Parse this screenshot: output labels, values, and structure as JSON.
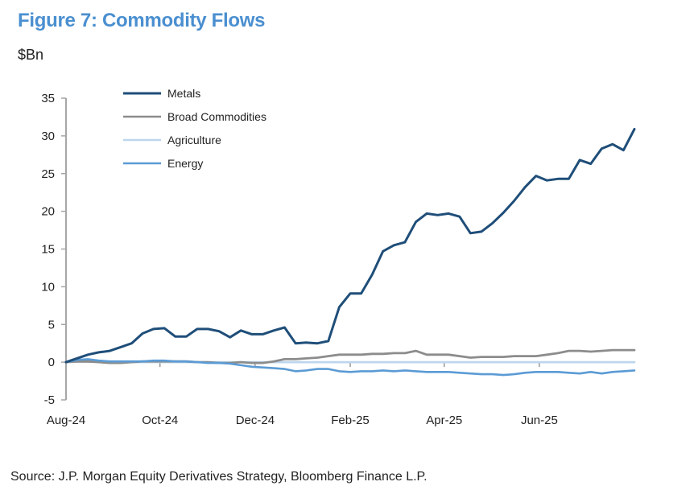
{
  "header": {
    "title": "Figure 7: Commodity Flows",
    "unit": "$Bn"
  },
  "footer": {
    "source": "Source: J.P. Morgan Equity Derivatives Strategy, Bloomberg Finance L.P."
  },
  "chart_data": {
    "type": "line",
    "title": "Figure 7: Commodity Flows",
    "ylabel": "$Bn",
    "xlabel": "",
    "ylim": [
      -5,
      35
    ],
    "yticks": [
      35,
      30,
      25,
      20,
      15,
      10,
      5,
      0,
      -5
    ],
    "xticks": [
      "Aug-24",
      "Oct-24",
      "Dec-24",
      "Feb-25",
      "Apr-25",
      "Jun-25"
    ],
    "xtick_week_index": [
      0,
      8.6,
      17.3,
      26,
      34.6,
      43.3
    ],
    "x_unit": "weekly observations from Aug-24",
    "grid": false,
    "legend_position": "top-left",
    "series": [
      {
        "name": "Metals",
        "color": "#1f4e79",
        "values": [
          0,
          0.5,
          1.0,
          1.3,
          1.5,
          2.0,
          2.5,
          3.8,
          4.4,
          4.5,
          3.4,
          3.4,
          4.4,
          4.4,
          4.1,
          3.3,
          4.2,
          3.7,
          3.7,
          4.2,
          4.6,
          2.5,
          2.6,
          2.5,
          2.8,
          7.3,
          9.1,
          9.1,
          11.6,
          14.7,
          15.5,
          15.9,
          18.6,
          19.7,
          19.5,
          19.7,
          19.3,
          17.1,
          17.3,
          18.4,
          19.8,
          21.4,
          23.2,
          24.7,
          24.1,
          24.3,
          24.3,
          26.8,
          26.3,
          28.3,
          28.9,
          28.1,
          30.9
        ]
      },
      {
        "name": "Broad Commodities",
        "color": "#8c8c8c",
        "values": [
          0,
          0.1,
          0.1,
          0.0,
          -0.1,
          -0.1,
          0.0,
          0.1,
          0.1,
          0.1,
          0.1,
          0.1,
          0.0,
          0.0,
          -0.1,
          -0.1,
          0.0,
          -0.1,
          -0.1,
          0.1,
          0.4,
          0.4,
          0.5,
          0.6,
          0.8,
          1.0,
          1.0,
          1.0,
          1.1,
          1.1,
          1.2,
          1.2,
          1.5,
          1.0,
          1.0,
          1.0,
          0.8,
          0.6,
          0.7,
          0.7,
          0.7,
          0.8,
          0.8,
          0.8,
          1.0,
          1.2,
          1.5,
          1.5,
          1.4,
          1.5,
          1.6,
          1.6,
          1.6
        ]
      },
      {
        "name": "Agriculture",
        "color": "#bdd7ee",
        "values": [
          0,
          0.1,
          0.1,
          0.1,
          0.0,
          0.0,
          0.0,
          0.0,
          0.0,
          0.0,
          0.0,
          0.0,
          0.0,
          0.0,
          0.0,
          0.0,
          0.0,
          0.0,
          0.0,
          0.0,
          0.0,
          0.0,
          0.0,
          0.0,
          0.0,
          0.0,
          0.0,
          0.0,
          0.0,
          0.0,
          0.0,
          0.0,
          0.0,
          0.0,
          0.0,
          0.0,
          0.0,
          0.0,
          0.0,
          0.0,
          0.0,
          0.0,
          0.0,
          0.0,
          0.0,
          0.0,
          0.0,
          0.0,
          0.0,
          0.0,
          0.0,
          0.0,
          0.0
        ]
      },
      {
        "name": "Energy",
        "color": "#5b9bd5",
        "values": [
          0,
          0.3,
          0.4,
          0.2,
          0.1,
          0.1,
          0.1,
          0.1,
          0.2,
          0.2,
          0.1,
          0.1,
          0.0,
          -0.1,
          -0.1,
          -0.2,
          -0.4,
          -0.6,
          -0.7,
          -0.8,
          -0.9,
          -1.2,
          -1.1,
          -0.9,
          -0.9,
          -1.2,
          -1.3,
          -1.2,
          -1.2,
          -1.1,
          -1.2,
          -1.1,
          -1.2,
          -1.3,
          -1.3,
          -1.3,
          -1.4,
          -1.5,
          -1.6,
          -1.6,
          -1.7,
          -1.6,
          -1.4,
          -1.3,
          -1.3,
          -1.3,
          -1.4,
          -1.5,
          -1.3,
          -1.5,
          -1.3,
          -1.2,
          -1.1
        ]
      }
    ]
  }
}
